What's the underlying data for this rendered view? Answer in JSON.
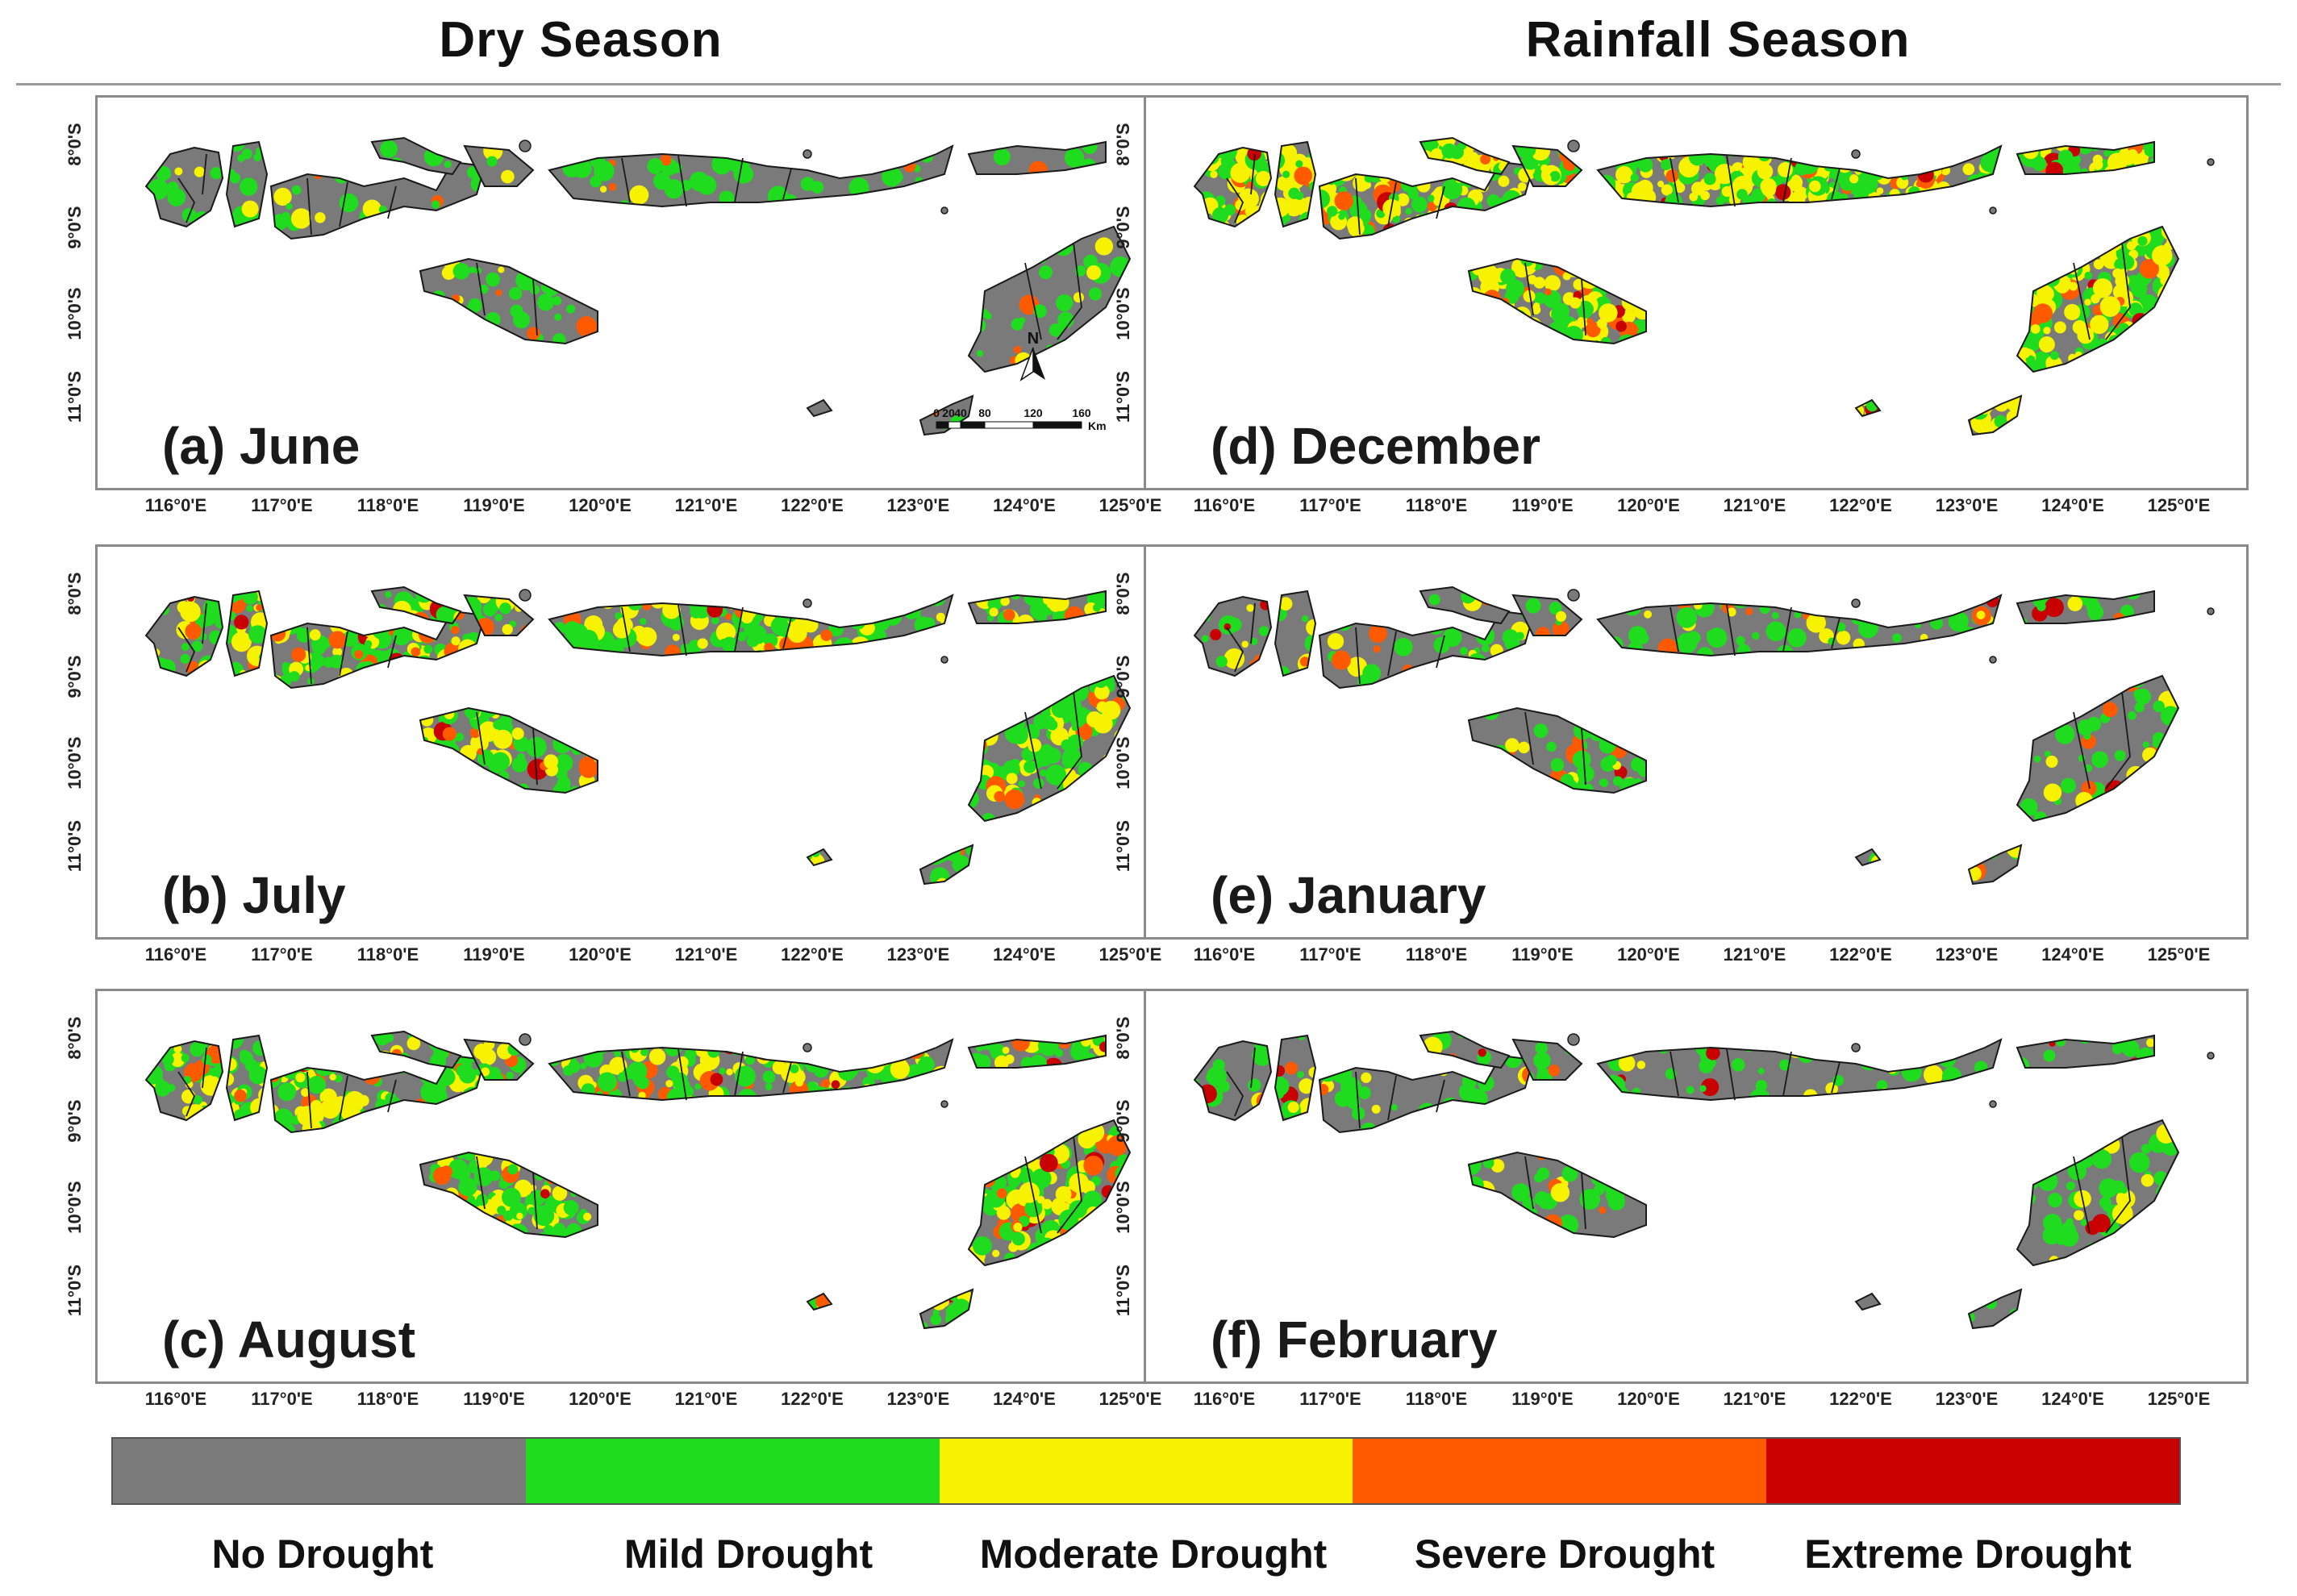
{
  "headers": {
    "dry": "Dry Season",
    "rain": "Rainfall Season"
  },
  "colors": {
    "no_drought": "#7a7a7a",
    "mild": "#1fdc1f",
    "moderate": "#f7f200",
    "severe": "#ff5a00",
    "extreme": "#c80000",
    "border": "#1a1a1a"
  },
  "panels": [
    {
      "id": "a",
      "label": "(a) June",
      "season": "dry",
      "intensity": {
        "mild": 0.12,
        "moderate": 0.02,
        "severe": 0.01,
        "extreme": 0.0
      }
    },
    {
      "id": "b",
      "label": "(b) July",
      "season": "dry",
      "intensity": {
        "mild": 0.28,
        "moderate": 0.16,
        "severe": 0.06,
        "extreme": 0.01
      }
    },
    {
      "id": "c",
      "label": "(c) August",
      "season": "dry",
      "intensity": {
        "mild": 0.34,
        "moderate": 0.2,
        "severe": 0.06,
        "extreme": 0.02
      }
    },
    {
      "id": "d",
      "label": "(d) December",
      "season": "rain",
      "intensity": {
        "mild": 0.3,
        "moderate": 0.34,
        "severe": 0.06,
        "extreme": 0.02
      }
    },
    {
      "id": "e",
      "label": "(e) January",
      "season": "rain",
      "intensity": {
        "mild": 0.15,
        "moderate": 0.05,
        "severe": 0.03,
        "extreme": 0.01
      }
    },
    {
      "id": "f",
      "label": "(f) February",
      "season": "rain",
      "intensity": {
        "mild": 0.16,
        "moderate": 0.04,
        "severe": 0.01,
        "extreme": 0.01
      }
    }
  ],
  "lat_labels": [
    "8°0'S",
    "9°0'S",
    "10°0'S",
    "11°0'S"
  ],
  "lon_labels": [
    "116°0'E",
    "117°0'E",
    "118°0'E",
    "119°0'E",
    "120°0'E",
    "121°0'E",
    "122°0'E",
    "123°0'E",
    "124°0'E",
    "125°0'E"
  ],
  "north_arrow": "N",
  "scale_bar": {
    "ticks": [
      "0",
      "20",
      "40",
      "80",
      "120",
      "160"
    ],
    "unit": "Km"
  },
  "legend": {
    "items": [
      {
        "label": "No Drought",
        "color": "#7a7a7a"
      },
      {
        "label": "Mild Drought",
        "color": "#1fdc1f"
      },
      {
        "label": "Moderate Drought",
        "color": "#f7f200"
      },
      {
        "label": "Severe Drought",
        "color": "#ff5a00"
      },
      {
        "label": "Extreme Drought",
        "color": "#c80000"
      }
    ]
  }
}
